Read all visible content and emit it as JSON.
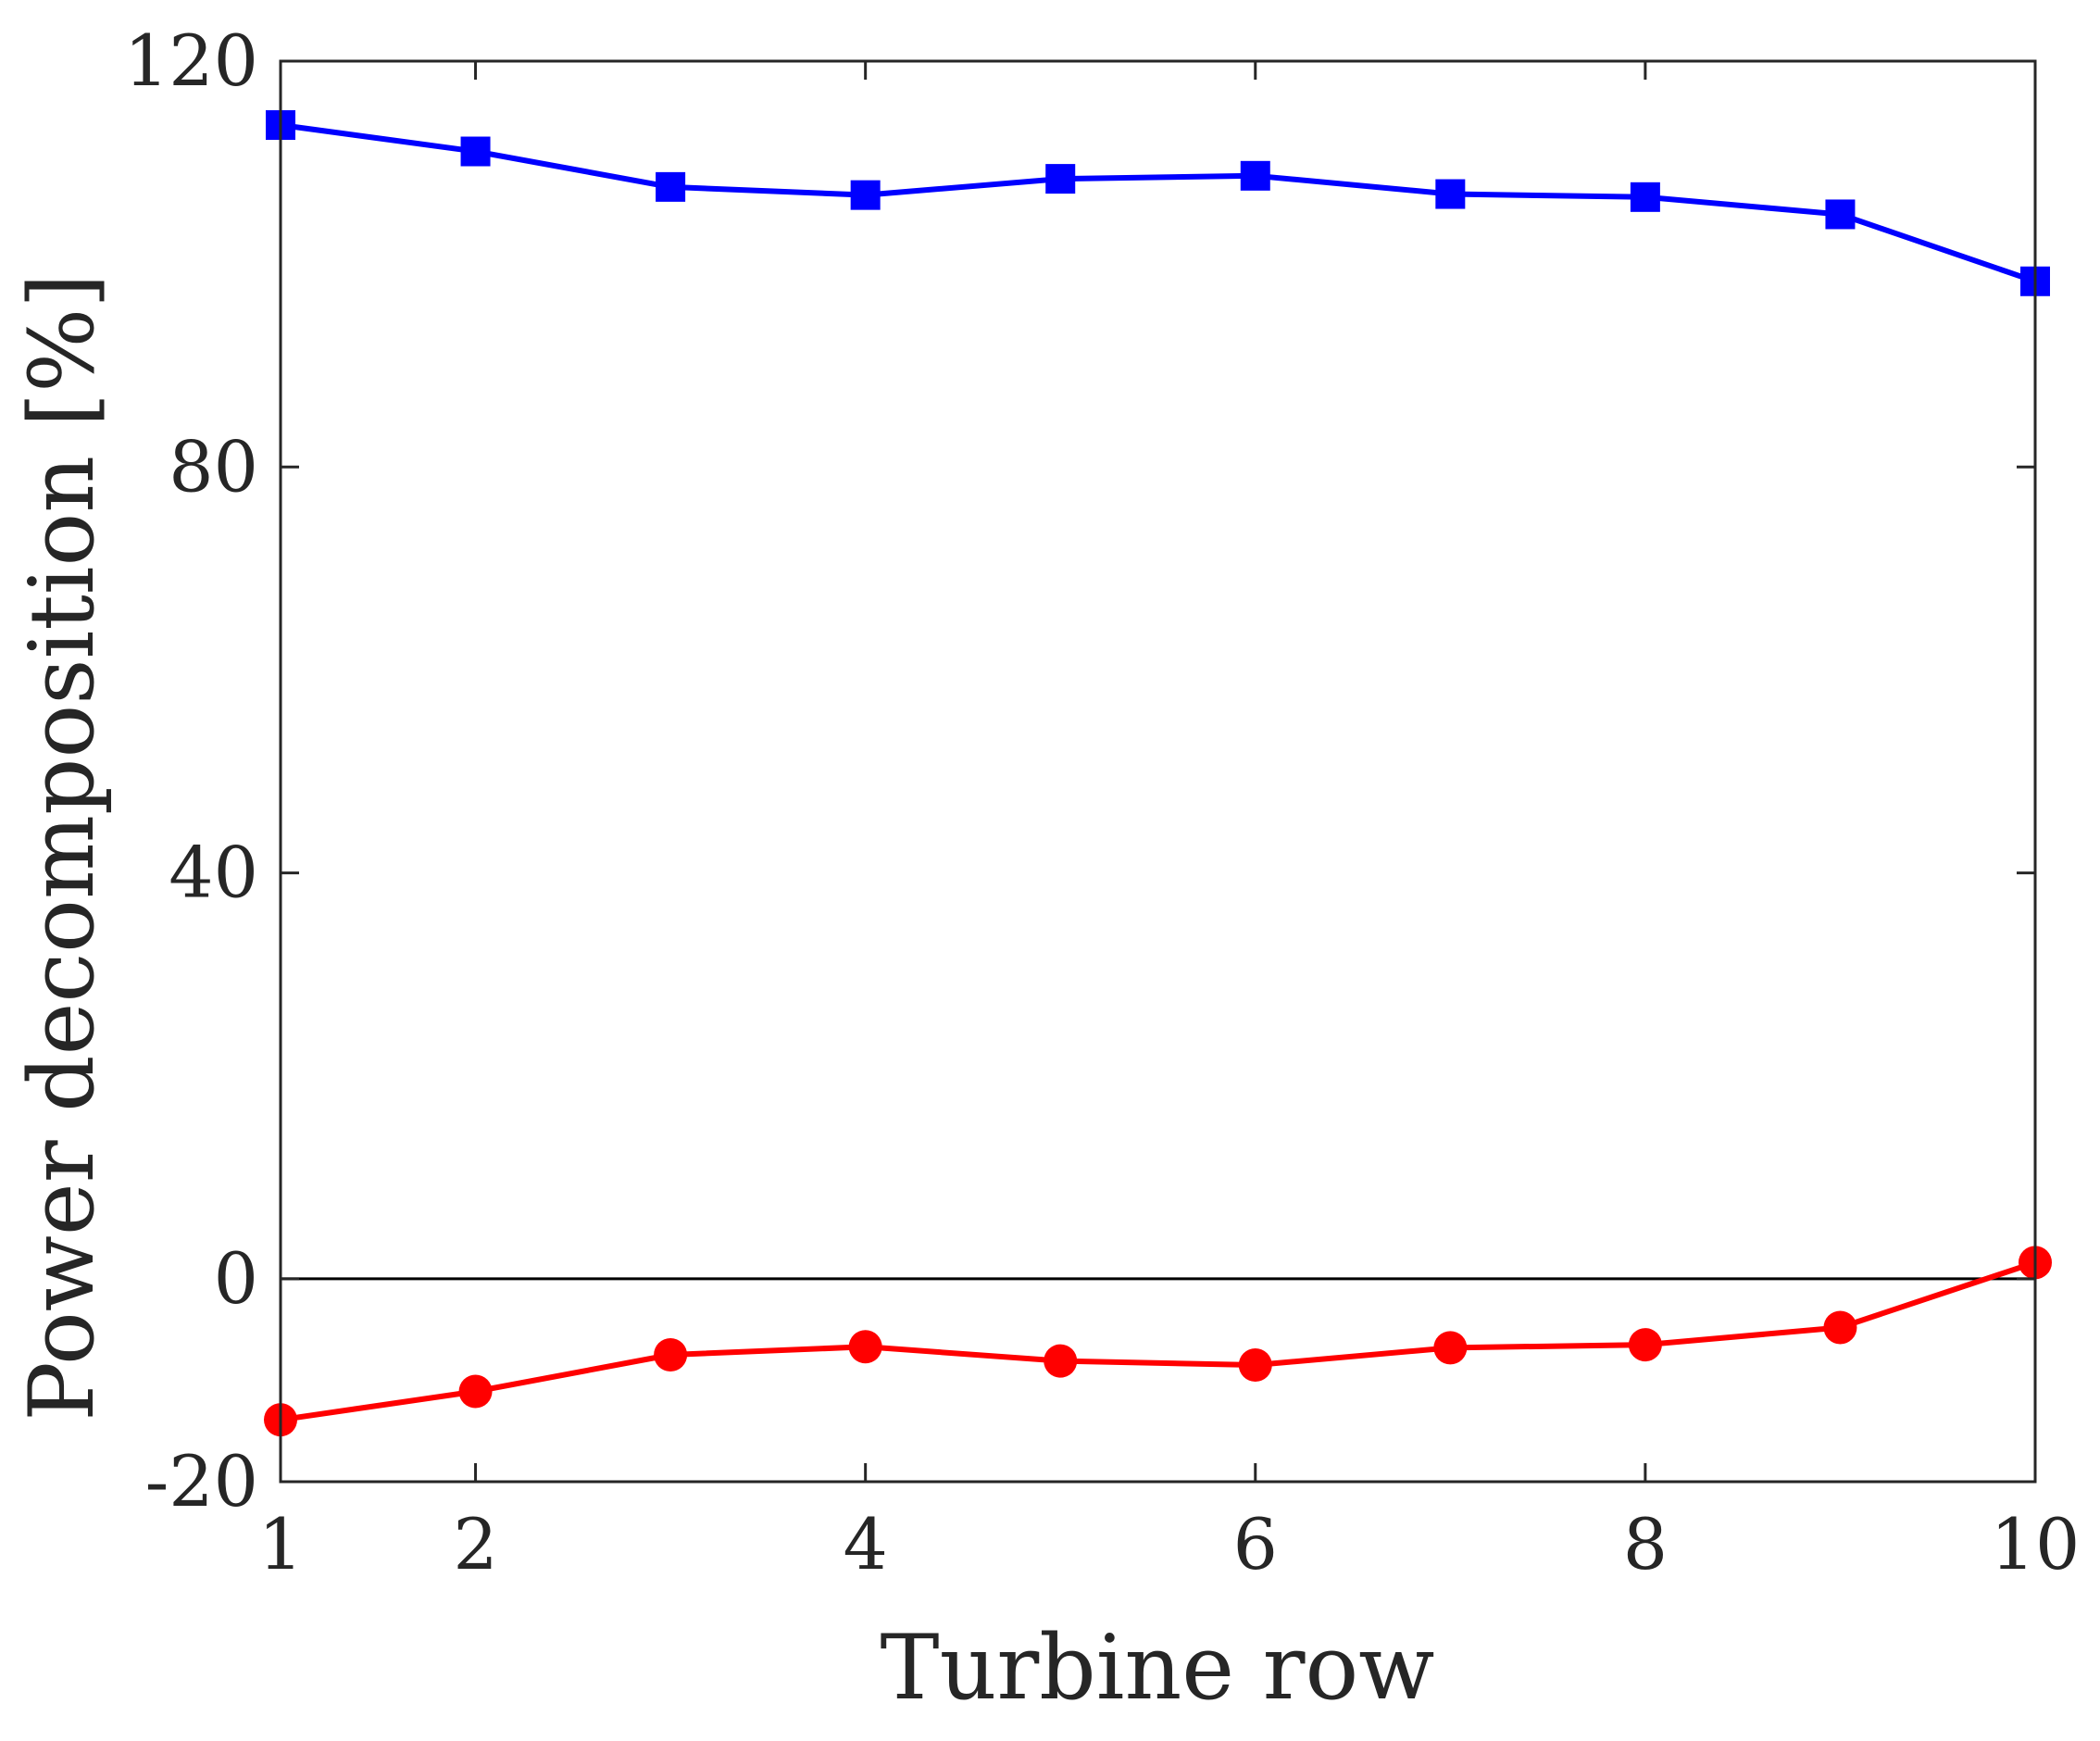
{
  "chart_data": {
    "type": "line",
    "title": "",
    "xlabel": "Turbine row",
    "ylabel": "Power decomposition [%]",
    "xlim": [
      1,
      10
    ],
    "ylim": [
      -20,
      120
    ],
    "xticks": [
      1,
      2,
      4,
      6,
      8,
      10
    ],
    "yticks": [
      -20,
      0,
      40,
      80,
      120
    ],
    "xtick_labels": [
      "1",
      "2",
      "4",
      "6",
      "8",
      "10"
    ],
    "ytick_labels": [
      "-20",
      "0",
      "40",
      "80",
      "120"
    ],
    "grid": false,
    "zero_line": true,
    "x": [
      1,
      2,
      3,
      4,
      5,
      6,
      7,
      8,
      9,
      10
    ],
    "series": [
      {
        "color": "#0000ff",
        "marker": "square",
        "values": [
          113.7,
          111.1,
          107.6,
          106.8,
          108.4,
          108.7,
          106.9,
          106.6,
          104.9,
          98.3
        ]
      },
      {
        "color": "#ff0000",
        "marker": "circle",
        "values": [
          -13.9,
          -11.1,
          -7.5,
          -6.7,
          -8.1,
          -8.5,
          -6.8,
          -6.5,
          -4.8,
          1.6
        ]
      }
    ]
  }
}
